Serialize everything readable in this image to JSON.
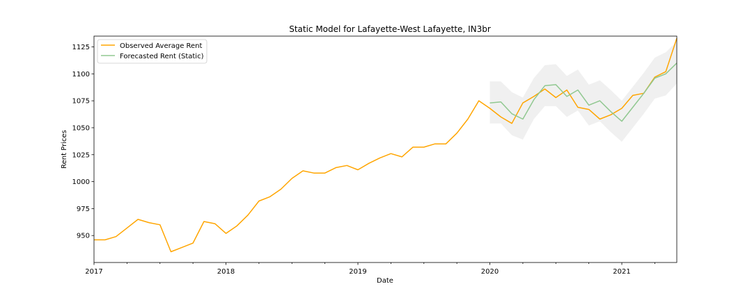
{
  "chart_data": {
    "type": "line",
    "title": "Static Model for Lafayette-West Lafayette, IN3br",
    "xlabel": "Date",
    "ylabel": "Rent Prices",
    "xlim": [
      "2017-01",
      "2021-06"
    ],
    "ylim": [
      925,
      1135
    ],
    "x_ticks": [
      "2017",
      "2018",
      "2019",
      "2020",
      "2021"
    ],
    "y_ticks": [
      950,
      975,
      1000,
      1025,
      1050,
      1075,
      1100,
      1125
    ],
    "grid": false,
    "legend_position": "top-left",
    "colors": {
      "observed": "#ffa500",
      "forecast": "#90c890",
      "band": "#d9d9d9"
    },
    "series": [
      {
        "name": "Observed Average Rent",
        "x": [
          "2017-01",
          "2017-02",
          "2017-03",
          "2017-04",
          "2017-05",
          "2017-06",
          "2017-07",
          "2017-08",
          "2017-09",
          "2017-10",
          "2017-11",
          "2017-12",
          "2018-01",
          "2018-02",
          "2018-03",
          "2018-04",
          "2018-05",
          "2018-06",
          "2018-07",
          "2018-08",
          "2018-09",
          "2018-10",
          "2018-11",
          "2018-12",
          "2019-01",
          "2019-02",
          "2019-03",
          "2019-04",
          "2019-05",
          "2019-06",
          "2019-07",
          "2019-08",
          "2019-09",
          "2019-10",
          "2019-11",
          "2019-12",
          "2020-01",
          "2020-02",
          "2020-03",
          "2020-04",
          "2020-05",
          "2020-06",
          "2020-07",
          "2020-08",
          "2020-09",
          "2020-10",
          "2020-11",
          "2020-12",
          "2021-01",
          "2021-02",
          "2021-03",
          "2021-04",
          "2021-05",
          "2021-06"
        ],
        "values": [
          946,
          946,
          949,
          957,
          965,
          962,
          960,
          935,
          939,
          943,
          963,
          961,
          952,
          959,
          969,
          982,
          986,
          993,
          1003,
          1010,
          1008,
          1008,
          1013,
          1015,
          1011,
          1017,
          1022,
          1026,
          1023,
          1032,
          1032,
          1035,
          1035,
          1045,
          1058,
          1075,
          1068,
          1060,
          1054,
          1073,
          1079,
          1086,
          1078,
          1085,
          1069,
          1067,
          1058,
          1062,
          1068,
          1080,
          1082,
          1097,
          1102,
          1133
        ]
      },
      {
        "name": "Forecasted Rent (Static)",
        "x": [
          "2020-01",
          "2020-02",
          "2020-03",
          "2020-04",
          "2020-05",
          "2020-06",
          "2020-07",
          "2020-08",
          "2020-09",
          "2020-10",
          "2020-11",
          "2020-12",
          "2021-01",
          "2021-02",
          "2021-03",
          "2021-04",
          "2021-05",
          "2021-06"
        ],
        "values": [
          1073,
          1074,
          1063,
          1058,
          1076,
          1089,
          1090,
          1079,
          1085,
          1071,
          1075,
          1065,
          1056,
          1069,
          1082,
          1096,
          1100,
          1110
        ],
        "lower": [
          1054,
          1054,
          1043,
          1039,
          1058,
          1070,
          1070,
          1060,
          1066,
          1052,
          1056,
          1046,
          1037,
          1050,
          1063,
          1077,
          1080,
          1091
        ],
        "upper": [
          1093,
          1093,
          1083,
          1078,
          1096,
          1108,
          1109,
          1098,
          1104,
          1090,
          1094,
          1085,
          1075,
          1088,
          1101,
          1115,
          1120,
          1130
        ]
      }
    ]
  }
}
